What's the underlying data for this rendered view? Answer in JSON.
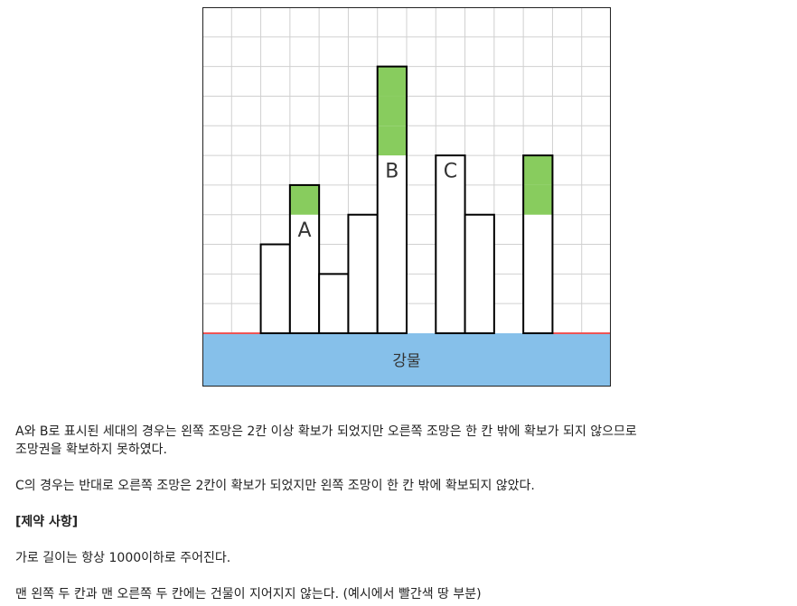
{
  "figure": {
    "columns": 14,
    "rows": 11,
    "cell_labels": [
      {
        "text": "A",
        "col": 3,
        "row": 7
      },
      {
        "text": "B",
        "col": 6,
        "row": 5
      },
      {
        "text": "C",
        "col": 8,
        "row": 5
      }
    ],
    "buildings": [
      {
        "col": 2,
        "height": 3
      },
      {
        "col": 3,
        "height": 5
      },
      {
        "col": 4,
        "height": 2
      },
      {
        "col": 5,
        "height": 4
      },
      {
        "col": 6,
        "height": 9
      },
      {
        "col": 8,
        "height": 6
      },
      {
        "col": 9,
        "height": 4
      },
      {
        "col": 11,
        "height": 6
      }
    ],
    "highlighted_floors": [
      {
        "col": 3,
        "floors": [
          5
        ]
      },
      {
        "col": 6,
        "floors": [
          7,
          8,
          9
        ]
      },
      {
        "col": 11,
        "floors": [
          5,
          6
        ]
      }
    ],
    "river_label": "강물",
    "colors": {
      "grid": "#d0d0d0",
      "building_border": "#000000",
      "highlight": "#88cc5e",
      "river": "#86c0ea",
      "forbidden_ground": "#ee5555"
    }
  },
  "text": {
    "para1_line1": "A와 B로 표시된 세대의 경우는 왼쪽 조망은 2칸 이상 확보가 되었지만 오른쪽 조망은 한 칸 밖에 확보가 되지 않으므로",
    "para1_line2": "조망권을 확보하지 못하였다.",
    "para2": "C의 경우는 반대로 오른쪽 조망은 2칸이 확보가 되었지만 왼쪽 조망이 한 칸 밖에 확보되지 않았다.",
    "constraints_heading": "[제약 사항]",
    "constraint1": "가로 길이는 항상 1000이하로 주어진다.",
    "constraint2": "맨 왼쪽 두 칸과 맨 오른쪽 두 칸에는 건물이 지어지지 않는다. (예시에서 빨간색 땅 부분)"
  }
}
